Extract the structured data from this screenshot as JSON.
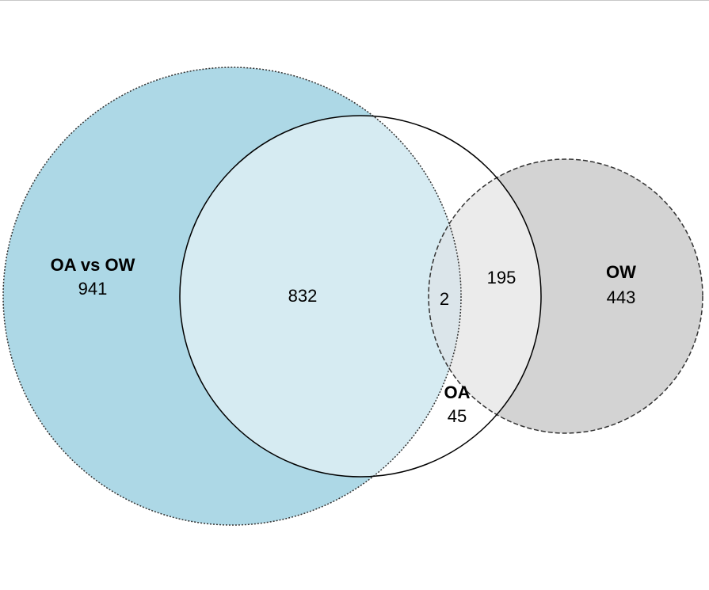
{
  "diagram": {
    "type": "venn",
    "sets": [
      {
        "id": "oa_vs_ow",
        "label": "OA vs OW",
        "count": "941",
        "fill": "#add8e6",
        "stroke": "#333333"
      },
      {
        "id": "oa",
        "label": "OA",
        "count": "45",
        "fill": "#ffffff",
        "stroke": "#000000"
      },
      {
        "id": "ow",
        "label": "OW",
        "count": "443",
        "fill": "#d3d3d3",
        "stroke": "#333333"
      }
    ],
    "intersections": {
      "oa_vs_ow__oa": "832",
      "oa_vs_ow__oa__ow": "2",
      "oa__ow": "195"
    },
    "colors": {
      "oa_vs_ow_and_oa": "#d6ebf2",
      "triple": "#dbe5ea",
      "oa_and_ow": "#ebebeb"
    }
  }
}
